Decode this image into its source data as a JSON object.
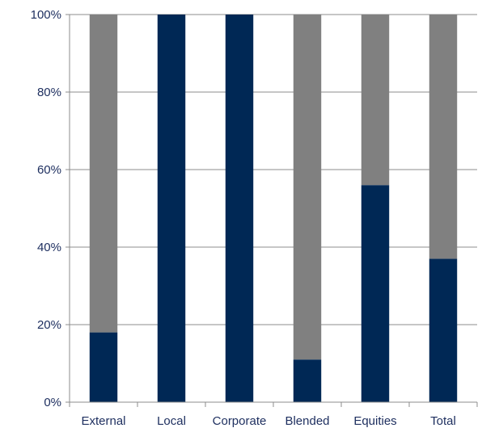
{
  "chart_data": {
    "type": "bar",
    "stacked": true,
    "categories": [
      "External",
      "Local",
      "Corporate",
      "Blended",
      "Equities",
      "Total"
    ],
    "series": [
      {
        "values": [
          18,
          100,
          100,
          11,
          56,
          37
        ],
        "color": "#002855"
      },
      {
        "values": [
          82,
          0,
          0,
          89,
          44,
          63
        ],
        "color": "#808080"
      }
    ],
    "ylim": [
      0,
      100
    ],
    "yticks": [
      0,
      20,
      40,
      60,
      80,
      100
    ],
    "ytick_labels": [
      "0%",
      "20%",
      "40%",
      "60%",
      "80%",
      "100%"
    ],
    "grid": true,
    "legend": "none"
  }
}
